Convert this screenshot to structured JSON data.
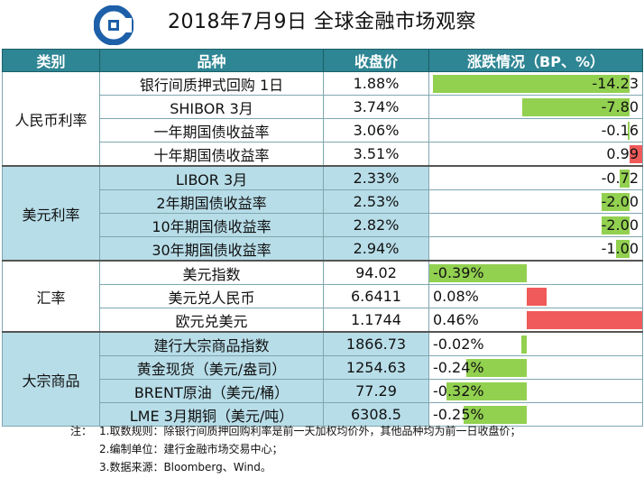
{
  "title": "2018年7月9日  全球金融市场观察",
  "colors": {
    "header_bg": "#2e8593",
    "group_blue": "#b7dde8",
    "negative_bar": "#92d050",
    "positive_bar": "#f05a5a",
    "logo_blue": "#1d5fa8"
  },
  "logo_icon": "ccb-logo-icon",
  "columns": {
    "category": "类别",
    "name": "品种",
    "close": "收盘价",
    "change": "涨跌情况（BP、%）"
  },
  "groups": [
    {
      "category": "人民币利率",
      "style": "white",
      "unit": "BP",
      "rows": [
        {
          "name": "银行间质押式回购 1日",
          "close": "1.88%",
          "change_label": "-14.23"
        },
        {
          "name": "SHIBOR 3月",
          "close": "3.74%",
          "change_label": "-7.80"
        },
        {
          "name": "一年期国债收益率",
          "close": "3.06%",
          "change_label": "-0.16"
        },
        {
          "name": "十年期国债收益率",
          "close": "3.51%",
          "change_label": "0.99"
        }
      ]
    },
    {
      "category": "美元利率",
      "style": "blue",
      "unit": "BP",
      "rows": [
        {
          "name": "LIBOR 3月",
          "close": "2.33%",
          "change_label": "-0.72"
        },
        {
          "name": "2年期国债收益率",
          "close": "2.53%",
          "change_label": "-2.00"
        },
        {
          "name": "10年期国债收益率",
          "close": "2.82%",
          "change_label": "-2.00"
        },
        {
          "name": "30年期国债收益率",
          "close": "2.94%",
          "change_label": "-1.00"
        }
      ]
    },
    {
      "category": "汇率",
      "style": "white",
      "unit": "%",
      "rows": [
        {
          "name": "美元指数",
          "close": "94.02",
          "change_label": "-0.39%"
        },
        {
          "name": "美元兑人民币",
          "close": "6.6411",
          "change_label": "0.08%"
        },
        {
          "name": "欧元兑美元",
          "close": "1.1744",
          "change_label": "0.46%"
        }
      ]
    },
    {
      "category": "大宗商品",
      "style": "blue",
      "unit": "%",
      "rows": [
        {
          "name": "建行大宗商品指数",
          "close": "1866.73",
          "change_label": "-0.02%"
        },
        {
          "name": "黄金现货（美元/盎司）",
          "close": "1254.63",
          "change_label": "-0.24%"
        },
        {
          "name": "BRENT原油（美元/桶）",
          "close": "77.29",
          "change_label": "-0.32%"
        },
        {
          "name": "LME 3月期铜（美元/吨）",
          "close": "6308.5",
          "change_label": "-0.25%"
        }
      ]
    }
  ],
  "notes": [
    {
      "prefix": "注：",
      "text": "1.取数规则：除银行间质押回购利率是前一天加权均价外，其他品种均为前一日收盘价；"
    },
    {
      "prefix": "",
      "text": "2.编制单位：建行金融市场交易中心；"
    },
    {
      "prefix": "",
      "text": "3.数据来源：Bloomberg、Wind。"
    }
  ],
  "chart_data": {
    "type": "bar",
    "title": "涨跌情况（BP、%）",
    "categories": [
      "银行间质押式回购 1日",
      "SHIBOR 3月",
      "一年期国债收益率",
      "十年期国债收益率",
      "LIBOR 3月",
      "2年期国债收益率",
      "10年期国债收益率",
      "30年期国债收益率",
      "美元指数",
      "美元兑人民币",
      "欧元兑美元",
      "建行大宗商品指数",
      "黄金现货（美元/盎司）",
      "BRENT原油（美元/桶）",
      "LME 3月期铜（美元/吨）"
    ],
    "series": [
      {
        "values": [
          -14.23,
          -7.8,
          -0.16,
          0.99,
          -0.72,
          -2.0,
          -2.0,
          -1.0,
          -0.39,
          0.08,
          0.46,
          -0.02,
          -0.24,
          -0.32,
          -0.25
        ]
      }
    ],
    "groups": [
      {
        "category": "人民币利率",
        "unit": "BP",
        "values": [
          -14.23,
          -7.8,
          -0.16,
          0.99
        ]
      },
      {
        "category": "美元利率",
        "unit": "BP",
        "values": [
          -0.72,
          -2.0,
          -2.0,
          -1.0
        ]
      },
      {
        "category": "汇率",
        "unit": "%",
        "values": [
          -0.39,
          0.08,
          0.46
        ]
      },
      {
        "category": "大宗商品",
        "unit": "%",
        "values": [
          -0.02,
          -0.24,
          -0.32,
          -0.25
        ]
      }
    ],
    "legend": "none",
    "grid": false
  }
}
